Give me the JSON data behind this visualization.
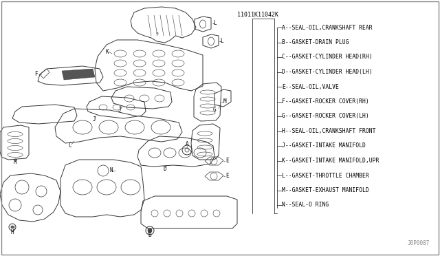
{
  "bg_color": "#ffffff",
  "line_color": "#333333",
  "text_color": "#000000",
  "part_numbers": [
    "11011K",
    "11042K"
  ],
  "legend_items": [
    "A--SEAL-OIL,CRANKSHAFT REAR",
    "B--GASKET-DRAIN PLUG",
    "C--GASKET-CYLINDER HEAD(RH)",
    "D--GASKET-CYLINDER HEAD(LH)",
    "E--SEAL-OIL,VALVE",
    "F--GASKET-ROCKER COVER(RH)",
    "G--GASKET-ROCKER COVER(LH)",
    "H--SEAL-OIL,CRANKSHAFT FRONT",
    "J--GASKET-INTAKE MANIFOLD",
    "K--GASKET-INTAKE MANIFOLD,UPR",
    "L--GASKET-THROTTLE CHAMBER",
    "M--GASKET-EXHAUST MANIFOLD",
    "N--SEAL-O RING"
  ],
  "diagram_code": "J0P0087",
  "border_color": "#888888"
}
